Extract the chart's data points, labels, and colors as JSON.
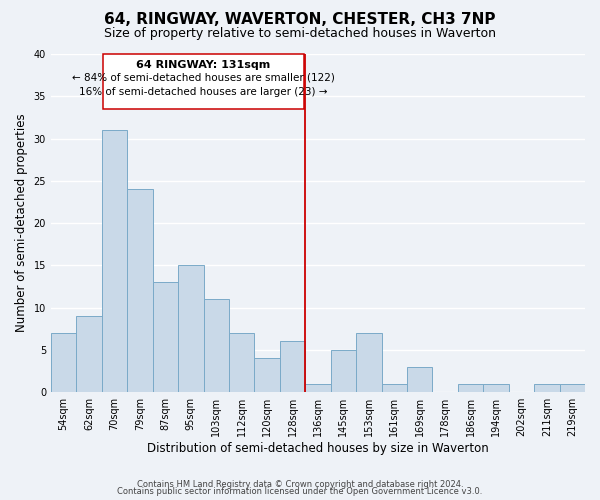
{
  "title": "64, RINGWAY, WAVERTON, CHESTER, CH3 7NP",
  "subtitle": "Size of property relative to semi-detached houses in Waverton",
  "xlabel": "Distribution of semi-detached houses by size in Waverton",
  "ylabel": "Number of semi-detached properties",
  "bin_labels": [
    "54sqm",
    "62sqm",
    "70sqm",
    "79sqm",
    "87sqm",
    "95sqm",
    "103sqm",
    "112sqm",
    "120sqm",
    "128sqm",
    "136sqm",
    "145sqm",
    "153sqm",
    "161sqm",
    "169sqm",
    "178sqm",
    "186sqm",
    "194sqm",
    "202sqm",
    "211sqm",
    "219sqm"
  ],
  "bar_heights": [
    7,
    9,
    31,
    24,
    13,
    15,
    11,
    7,
    4,
    6,
    1,
    5,
    7,
    1,
    3,
    0,
    1,
    1,
    0,
    1,
    1
  ],
  "bar_color": "#c9d9e8",
  "bar_edge_color": "#7aaac8",
  "property_label": "64 RINGWAY: 131sqm",
  "annotation_line1": "← 84% of semi-detached houses are smaller (122)",
  "annotation_line2": "16% of semi-detached houses are larger (23) →",
  "line_x_index": 9.5,
  "ylim": [
    0,
    40
  ],
  "yticks": [
    0,
    5,
    10,
    15,
    20,
    25,
    30,
    35,
    40
  ],
  "footnote1": "Contains HM Land Registry data © Crown copyright and database right 2024.",
  "footnote2": "Contains public sector information licensed under the Open Government Licence v3.0.",
  "background_color": "#eef2f7",
  "grid_color": "#ffffff",
  "box_edge_color": "#cc0000",
  "title_fontsize": 11,
  "subtitle_fontsize": 9,
  "axis_label_fontsize": 8.5,
  "tick_fontsize": 7,
  "annotation_fontsize": 8,
  "footnote_fontsize": 6
}
